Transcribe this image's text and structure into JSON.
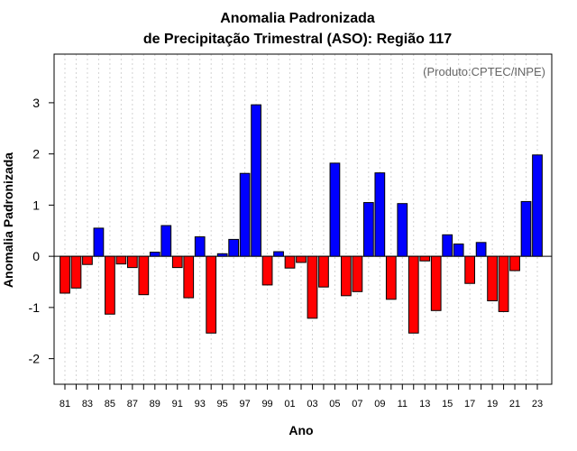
{
  "chart_data": {
    "type": "bar",
    "title_line1": "Anomalia Padronizada",
    "title_line2": "de Precipitação Trimestral (ASO): Região 117",
    "xlabel": "Ano",
    "ylabel": "Anomalia Padronizada",
    "credit": "(Produto:CPTEC/INPE)",
    "ylim": [
      -2.5,
      3.95
    ],
    "yticks": [
      -2,
      -1,
      0,
      1,
      2,
      3
    ],
    "years": [
      1981,
      1982,
      1983,
      1984,
      1985,
      1986,
      1987,
      1988,
      1989,
      1990,
      1991,
      1992,
      1993,
      1994,
      1995,
      1996,
      1997,
      1998,
      1999,
      2000,
      2001,
      2002,
      2003,
      2004,
      2005,
      2006,
      2007,
      2008,
      2009,
      2010,
      2011,
      2012,
      2013,
      2014,
      2015,
      2016,
      2017,
      2018,
      2019,
      2020,
      2021,
      2022,
      2023
    ],
    "xtick_labels": [
      "81",
      "83",
      "85",
      "87",
      "89",
      "91",
      "93",
      "95",
      "97",
      "99",
      "01",
      "03",
      "05",
      "07",
      "09",
      "11",
      "13",
      "15",
      "17",
      "19",
      "21",
      "23"
    ],
    "values": [
      -0.72,
      -0.62,
      -0.16,
      0.55,
      -1.13,
      -0.15,
      -0.22,
      -0.75,
      0.08,
      0.6,
      -0.22,
      -0.81,
      0.38,
      -1.5,
      0.05,
      0.33,
      1.62,
      2.96,
      -0.56,
      0.09,
      -0.23,
      -0.12,
      -1.21,
      -0.6,
      1.82,
      -0.77,
      -0.69,
      1.05,
      1.63,
      -0.84,
      1.03,
      -1.5,
      -0.09,
      -1.06,
      0.42,
      0.24,
      -0.53,
      0.27,
      -0.87,
      -1.08,
      -0.28,
      1.07,
      1.98
    ],
    "colors": {
      "positive": "#0000ff",
      "negative": "#ff0000",
      "frame": "#000000",
      "grid": "#d3d3d3"
    }
  }
}
